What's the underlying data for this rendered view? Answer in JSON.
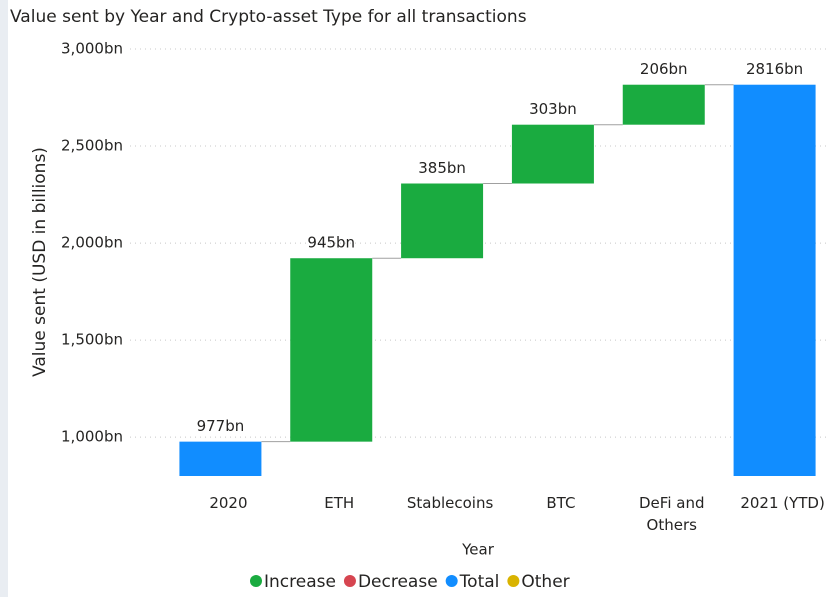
{
  "chart_data": {
    "type": "waterfall",
    "title": "Value sent by Year and Crypto-asset Type for all transactions",
    "x_label": "Year",
    "y_label": "Value sent (USD in billions)",
    "categories": [
      "2020",
      "ETH",
      "Stablecoins",
      "BTC",
      "DeFi and Others",
      "2021 (YTD)"
    ],
    "values": [
      977,
      945,
      385,
      303,
      206,
      2816
    ],
    "value_labels": [
      "977bn",
      "945bn",
      "385bn",
      "303bn",
      "206bn",
      "2816bn"
    ],
    "bar_kinds": [
      "Total",
      "Increase",
      "Increase",
      "Increase",
      "Increase",
      "Total"
    ],
    "legend": [
      {
        "name": "Increase",
        "color": "#1aab40"
      },
      {
        "name": "Decrease",
        "color": "#d64550"
      },
      {
        "name": "Total",
        "color": "#118dff"
      },
      {
        "name": "Other",
        "color": "#d9b300"
      }
    ],
    "ylim": [
      800,
      3000
    ],
    "yticks": [
      {
        "value": 1000,
        "label": "1,000bn"
      },
      {
        "value": 1500,
        "label": "1,500bn"
      },
      {
        "value": 2000,
        "label": "2,000bn"
      },
      {
        "value": 2500,
        "label": "2,500bn"
      },
      {
        "value": 3000,
        "label": "3,000bn"
      }
    ],
    "grid": true
  }
}
